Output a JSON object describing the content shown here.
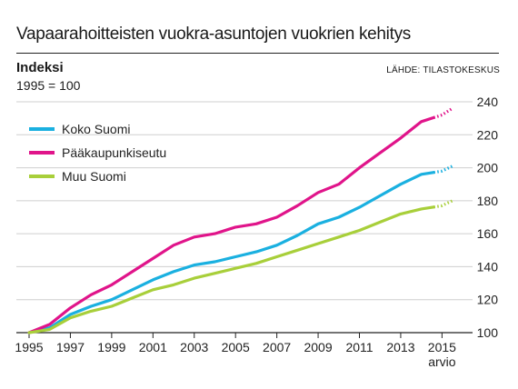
{
  "header": {
    "title": "Vapaarahoitteisten vuokra-asuntojen vuokrien kehitys",
    "subtitle": "Indeksi",
    "base_note": "1995 = 100",
    "source": "LÄHDE: TILASTOKESKUS"
  },
  "chart_data": {
    "type": "line",
    "x": [
      1995,
      1996,
      1997,
      1998,
      1999,
      2000,
      2001,
      2002,
      2003,
      2004,
      2005,
      2006,
      2007,
      2008,
      2009,
      2010,
      2011,
      2012,
      2013,
      2014,
      2015,
      2015.5
    ],
    "x_ticks": [
      1995,
      1997,
      1999,
      2001,
      2003,
      2005,
      2007,
      2009,
      2011,
      2013,
      2015
    ],
    "x_tick_labels": [
      "1995",
      "1997",
      "1999",
      "2001",
      "2003",
      "2005",
      "2007",
      "2009",
      "2011",
      "2013",
      "2015"
    ],
    "x_tick_note": "arvio",
    "y_ticks": [
      100,
      120,
      140,
      160,
      180,
      200,
      220,
      240
    ],
    "ylim": [
      100,
      240
    ],
    "estimate_from": 2014.6,
    "series": [
      {
        "name": "Koko Suomi",
        "color": "#1ab0e0",
        "values": [
          100,
          103,
          111,
          116,
          120,
          126,
          132,
          137,
          141,
          143,
          146,
          149,
          153,
          159,
          166,
          170,
          176,
          183,
          190,
          196,
          198,
          201
        ]
      },
      {
        "name": "Pääkaupunkiseutu",
        "color": "#e0148a",
        "values": [
          100,
          105,
          115,
          123,
          129,
          137,
          145,
          153,
          158,
          160,
          164,
          166,
          170,
          177,
          185,
          190,
          200,
          209,
          218,
          228,
          232,
          236
        ]
      },
      {
        "name": "Muu Suomi",
        "color": "#a8cf3a",
        "values": [
          100,
          102,
          109,
          113,
          116,
          121,
          126,
          129,
          133,
          136,
          139,
          142,
          146,
          150,
          154,
          158,
          162,
          167,
          172,
          175,
          177,
          180
        ]
      }
    ]
  }
}
